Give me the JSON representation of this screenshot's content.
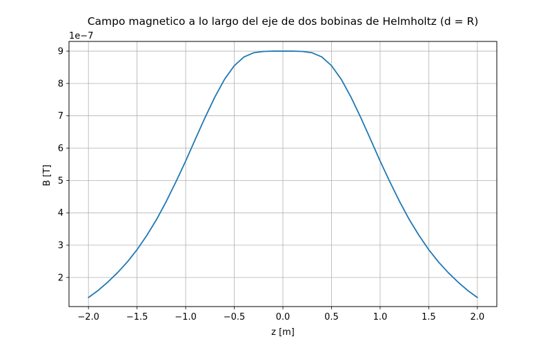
{
  "chart_data": {
    "type": "line",
    "title": "Campo magnetico a lo largo del eje de dos bobinas de Helmholtz (d = R)",
    "xlabel": "z [m]",
    "ylabel": "B [T]",
    "y_offset_text": "1e−7",
    "xlim": [
      -2.2,
      2.2
    ],
    "ylim": [
      1.1,
      9.3
    ],
    "x_ticks": [
      -2.0,
      -1.5,
      -1.0,
      -0.5,
      0.0,
      0.5,
      1.0,
      1.5,
      2.0
    ],
    "x_tick_labels": [
      "−2.0",
      "−1.5",
      "−1.0",
      "−0.5",
      "0.0",
      "0.5",
      "1.0",
      "1.5",
      "2.0"
    ],
    "y_ticks": [
      2,
      3,
      4,
      5,
      6,
      7,
      8,
      9
    ],
    "y_tick_labels": [
      "2",
      "3",
      "4",
      "5",
      "6",
      "7",
      "8",
      "9"
    ],
    "grid": true,
    "series": [
      {
        "color": "#1f77b4",
        "x": [
          -2.0,
          -1.9,
          -1.8,
          -1.7,
          -1.6,
          -1.5,
          -1.4,
          -1.3,
          -1.2,
          -1.1,
          -1.0,
          -0.9,
          -0.8,
          -0.7,
          -0.6,
          -0.5,
          -0.4,
          -0.3,
          -0.2,
          -0.1,
          0.0,
          0.1,
          0.2,
          0.3,
          0.4,
          0.5,
          0.6,
          0.7,
          0.8,
          0.9,
          1.0,
          1.1,
          1.2,
          1.3,
          1.4,
          1.5,
          1.6,
          1.7,
          1.8,
          1.9,
          2.0
        ],
        "y": [
          1.38,
          1.6,
          1.86,
          2.15,
          2.48,
          2.86,
          3.3,
          3.79,
          4.35,
          4.96,
          5.6,
          6.28,
          6.95,
          7.58,
          8.13,
          8.55,
          8.82,
          8.95,
          8.99,
          9.0,
          9.0,
          9.0,
          8.99,
          8.95,
          8.82,
          8.55,
          8.13,
          7.58,
          6.95,
          6.28,
          5.6,
          4.96,
          4.35,
          3.79,
          3.3,
          2.86,
          2.48,
          2.15,
          1.86,
          1.6,
          1.38
        ]
      }
    ]
  }
}
